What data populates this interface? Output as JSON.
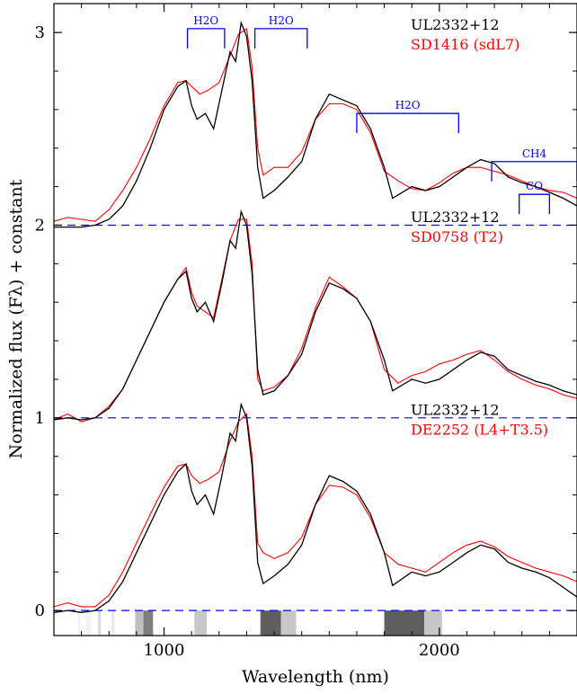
{
  "chart_data": {
    "type": "line",
    "xlabel": "Wavelength (nm)",
    "ylabel": "Normalized flux (Fλ) + constant",
    "xlim": [
      600,
      2500
    ],
    "ylim": [
      -0.13,
      3.15
    ],
    "x_ticks": [
      1000,
      2000
    ],
    "x_tick_labels": [
      "1000",
      "2000"
    ],
    "y_ticks": [
      0,
      1,
      2,
      3
    ],
    "y_tick_labels": [
      "0",
      "1",
      "2",
      "3"
    ],
    "grid": false,
    "offset_lines": [
      0,
      1,
      2
    ],
    "colors": {
      "observed": "#000000",
      "template": "#ff0000",
      "annotation": "#0000ff",
      "offset_line": "#0000ff"
    },
    "panels": [
      {
        "offset": 2,
        "legend": {
          "observed": "UL2332+12",
          "template": "SD1416 (sdL7)"
        },
        "observed": [
          [
            600,
            -0.01
          ],
          [
            650,
            -0.01
          ],
          [
            700,
            -0.01
          ],
          [
            750,
            0.0
          ],
          [
            800,
            0.03
          ],
          [
            850,
            0.1
          ],
          [
            900,
            0.23
          ],
          [
            950,
            0.4
          ],
          [
            1000,
            0.6
          ],
          [
            1050,
            0.72
          ],
          [
            1080,
            0.75
          ],
          [
            1100,
            0.62
          ],
          [
            1120,
            0.55
          ],
          [
            1150,
            0.58
          ],
          [
            1180,
            0.5
          ],
          [
            1210,
            0.7
          ],
          [
            1240,
            0.9
          ],
          [
            1260,
            0.85
          ],
          [
            1280,
            1.05
          ],
          [
            1300,
            0.98
          ],
          [
            1320,
            0.75
          ],
          [
            1340,
            0.3
          ],
          [
            1360,
            0.14
          ],
          [
            1400,
            0.18
          ],
          [
            1450,
            0.25
          ],
          [
            1500,
            0.33
          ],
          [
            1550,
            0.55
          ],
          [
            1600,
            0.68
          ],
          [
            1650,
            0.65
          ],
          [
            1700,
            0.62
          ],
          [
            1750,
            0.5
          ],
          [
            1800,
            0.3
          ],
          [
            1830,
            0.14
          ],
          [
            1900,
            0.2
          ],
          [
            1950,
            0.18
          ],
          [
            2000,
            0.2
          ],
          [
            2050,
            0.25
          ],
          [
            2100,
            0.3
          ],
          [
            2150,
            0.34
          ],
          [
            2200,
            0.32
          ],
          [
            2250,
            0.25
          ],
          [
            2300,
            0.22
          ],
          [
            2350,
            0.2
          ],
          [
            2400,
            0.17
          ],
          [
            2450,
            0.14
          ],
          [
            2500,
            0.1
          ]
        ],
        "template": [
          [
            600,
            0.02
          ],
          [
            650,
            0.04
          ],
          [
            700,
            0.03
          ],
          [
            750,
            0.02
          ],
          [
            800,
            0.08
          ],
          [
            850,
            0.18
          ],
          [
            900,
            0.3
          ],
          [
            950,
            0.45
          ],
          [
            1000,
            0.62
          ],
          [
            1050,
            0.74
          ],
          [
            1080,
            0.75
          ],
          [
            1100,
            0.72
          ],
          [
            1130,
            0.68
          ],
          [
            1160,
            0.7
          ],
          [
            1200,
            0.74
          ],
          [
            1240,
            0.88
          ],
          [
            1270,
            0.99
          ],
          [
            1300,
            1.02
          ],
          [
            1320,
            0.82
          ],
          [
            1340,
            0.4
          ],
          [
            1360,
            0.26
          ],
          [
            1400,
            0.3
          ],
          [
            1450,
            0.3
          ],
          [
            1500,
            0.38
          ],
          [
            1550,
            0.55
          ],
          [
            1600,
            0.63
          ],
          [
            1650,
            0.63
          ],
          [
            1700,
            0.6
          ],
          [
            1750,
            0.48
          ],
          [
            1800,
            0.28
          ],
          [
            1850,
            0.23
          ],
          [
            1900,
            0.19
          ],
          [
            1950,
            0.18
          ],
          [
            2000,
            0.22
          ],
          [
            2050,
            0.27
          ],
          [
            2100,
            0.3
          ],
          [
            2150,
            0.3
          ],
          [
            2200,
            0.28
          ],
          [
            2250,
            0.26
          ],
          [
            2300,
            0.23
          ],
          [
            2350,
            0.2
          ],
          [
            2400,
            0.18
          ],
          [
            2450,
            0.17
          ],
          [
            2500,
            0.14
          ]
        ]
      },
      {
        "offset": 1,
        "legend": {
          "observed": "UL2332+12",
          "template": "SD0758 (T2)"
        },
        "observed": [
          [
            600,
            -0.01
          ],
          [
            650,
            0.0
          ],
          [
            700,
            -0.01
          ],
          [
            750,
            0.0
          ],
          [
            800,
            0.05
          ],
          [
            850,
            0.15
          ],
          [
            900,
            0.3
          ],
          [
            950,
            0.45
          ],
          [
            1000,
            0.6
          ],
          [
            1050,
            0.72
          ],
          [
            1080,
            0.76
          ],
          [
            1100,
            0.62
          ],
          [
            1120,
            0.55
          ],
          [
            1150,
            0.6
          ],
          [
            1180,
            0.5
          ],
          [
            1210,
            0.7
          ],
          [
            1240,
            0.92
          ],
          [
            1260,
            0.88
          ],
          [
            1280,
            1.07
          ],
          [
            1300,
            1.0
          ],
          [
            1320,
            0.75
          ],
          [
            1340,
            0.25
          ],
          [
            1360,
            0.12
          ],
          [
            1400,
            0.14
          ],
          [
            1450,
            0.22
          ],
          [
            1500,
            0.33
          ],
          [
            1550,
            0.55
          ],
          [
            1600,
            0.7
          ],
          [
            1650,
            0.67
          ],
          [
            1700,
            0.62
          ],
          [
            1750,
            0.5
          ],
          [
            1800,
            0.3
          ],
          [
            1830,
            0.14
          ],
          [
            1900,
            0.2
          ],
          [
            1950,
            0.18
          ],
          [
            2000,
            0.2
          ],
          [
            2050,
            0.25
          ],
          [
            2100,
            0.3
          ],
          [
            2150,
            0.34
          ],
          [
            2200,
            0.32
          ],
          [
            2250,
            0.25
          ],
          [
            2300,
            0.22
          ],
          [
            2350,
            0.19
          ],
          [
            2400,
            0.17
          ],
          [
            2450,
            0.14
          ],
          [
            2500,
            0.12
          ]
        ],
        "template": [
          [
            600,
            -0.01
          ],
          [
            650,
            0.02
          ],
          [
            700,
            -0.02
          ],
          [
            750,
            0.0
          ],
          [
            800,
            0.06
          ],
          [
            850,
            0.15
          ],
          [
            900,
            0.3
          ],
          [
            950,
            0.45
          ],
          [
            1000,
            0.6
          ],
          [
            1050,
            0.72
          ],
          [
            1080,
            0.78
          ],
          [
            1100,
            0.65
          ],
          [
            1120,
            0.58
          ],
          [
            1150,
            0.55
          ],
          [
            1180,
            0.52
          ],
          [
            1210,
            0.72
          ],
          [
            1240,
            0.92
          ],
          [
            1270,
            1.03
          ],
          [
            1300,
            1.03
          ],
          [
            1320,
            0.8
          ],
          [
            1340,
            0.2
          ],
          [
            1360,
            0.14
          ],
          [
            1400,
            0.16
          ],
          [
            1450,
            0.22
          ],
          [
            1500,
            0.36
          ],
          [
            1550,
            0.57
          ],
          [
            1600,
            0.73
          ],
          [
            1650,
            0.68
          ],
          [
            1700,
            0.62
          ],
          [
            1750,
            0.5
          ],
          [
            1800,
            0.25
          ],
          [
            1850,
            0.18
          ],
          [
            1900,
            0.22
          ],
          [
            1950,
            0.24
          ],
          [
            2000,
            0.28
          ],
          [
            2050,
            0.3
          ],
          [
            2100,
            0.33
          ],
          [
            2150,
            0.35
          ],
          [
            2200,
            0.3
          ],
          [
            2250,
            0.24
          ],
          [
            2300,
            0.2
          ],
          [
            2350,
            0.17
          ],
          [
            2400,
            0.15
          ],
          [
            2450,
            0.12
          ],
          [
            2500,
            0.1
          ]
        ]
      },
      {
        "offset": 0,
        "legend": {
          "observed": "UL2332+12",
          "template": "DE2252 (L4+T3.5)"
        },
        "observed": [
          [
            600,
            -0.01
          ],
          [
            650,
            0.0
          ],
          [
            700,
            -0.01
          ],
          [
            750,
            0.0
          ],
          [
            800,
            0.05
          ],
          [
            850,
            0.15
          ],
          [
            900,
            0.3
          ],
          [
            950,
            0.45
          ],
          [
            1000,
            0.6
          ],
          [
            1050,
            0.72
          ],
          [
            1080,
            0.76
          ],
          [
            1100,
            0.62
          ],
          [
            1120,
            0.55
          ],
          [
            1150,
            0.6
          ],
          [
            1180,
            0.5
          ],
          [
            1210,
            0.7
          ],
          [
            1240,
            0.92
          ],
          [
            1260,
            0.88
          ],
          [
            1280,
            1.07
          ],
          [
            1300,
            1.0
          ],
          [
            1320,
            0.75
          ],
          [
            1340,
            0.25
          ],
          [
            1360,
            0.14
          ],
          [
            1400,
            0.18
          ],
          [
            1450,
            0.24
          ],
          [
            1500,
            0.34
          ],
          [
            1550,
            0.55
          ],
          [
            1600,
            0.7
          ],
          [
            1650,
            0.67
          ],
          [
            1700,
            0.62
          ],
          [
            1750,
            0.5
          ],
          [
            1800,
            0.3
          ],
          [
            1830,
            0.13
          ],
          [
            1900,
            0.2
          ],
          [
            1950,
            0.18
          ],
          [
            2000,
            0.2
          ],
          [
            2050,
            0.25
          ],
          [
            2100,
            0.3
          ],
          [
            2150,
            0.34
          ],
          [
            2200,
            0.32
          ],
          [
            2250,
            0.25
          ],
          [
            2300,
            0.22
          ],
          [
            2350,
            0.2
          ],
          [
            2400,
            0.17
          ],
          [
            2450,
            0.12
          ],
          [
            2500,
            0.07
          ]
        ],
        "template": [
          [
            600,
            0.02
          ],
          [
            650,
            0.04
          ],
          [
            700,
            0.02
          ],
          [
            750,
            0.02
          ],
          [
            800,
            0.08
          ],
          [
            850,
            0.2
          ],
          [
            900,
            0.35
          ],
          [
            950,
            0.5
          ],
          [
            1000,
            0.64
          ],
          [
            1050,
            0.75
          ],
          [
            1080,
            0.76
          ],
          [
            1100,
            0.7
          ],
          [
            1130,
            0.66
          ],
          [
            1160,
            0.68
          ],
          [
            1200,
            0.72
          ],
          [
            1240,
            0.88
          ],
          [
            1270,
            0.98
          ],
          [
            1300,
            1.02
          ],
          [
            1320,
            0.8
          ],
          [
            1340,
            0.35
          ],
          [
            1360,
            0.3
          ],
          [
            1400,
            0.27
          ],
          [
            1450,
            0.3
          ],
          [
            1500,
            0.38
          ],
          [
            1550,
            0.55
          ],
          [
            1600,
            0.65
          ],
          [
            1650,
            0.64
          ],
          [
            1700,
            0.6
          ],
          [
            1750,
            0.48
          ],
          [
            1800,
            0.3
          ],
          [
            1850,
            0.24
          ],
          [
            1900,
            0.22
          ],
          [
            1950,
            0.2
          ],
          [
            2000,
            0.25
          ],
          [
            2050,
            0.3
          ],
          [
            2100,
            0.34
          ],
          [
            2150,
            0.36
          ],
          [
            2200,
            0.33
          ],
          [
            2250,
            0.28
          ],
          [
            2300,
            0.25
          ],
          [
            2350,
            0.22
          ],
          [
            2400,
            0.2
          ],
          [
            2450,
            0.18
          ],
          [
            2500,
            0.15
          ]
        ]
      }
    ],
    "band_annotations": [
      {
        "label": "H2O",
        "x_start": 1085,
        "x_end": 1220,
        "y": 3.02
      },
      {
        "label": "H2O",
        "x_start": 1330,
        "x_end": 1520,
        "y": 3.02
      },
      {
        "label": "H2O",
        "x_start": 1700,
        "x_end": 2070,
        "y": 2.58
      },
      {
        "label": "CH4",
        "x_start": 2190,
        "x_end": 2500,
        "y": 2.33
      },
      {
        "label": "CO",
        "x_start": 2290,
        "x_end": 2400,
        "y": 2.16
      }
    ],
    "telluric_regions": [
      {
        "x_start": 688,
        "x_end": 695,
        "shade": "#f2f2f2"
      },
      {
        "x_start": 715,
        "x_end": 735,
        "shade": "#f2f2f2"
      },
      {
        "x_start": 760,
        "x_end": 770,
        "shade": "#d9d9d9"
      },
      {
        "x_start": 810,
        "x_end": 820,
        "shade": "#e8e8e8"
      },
      {
        "x_start": 895,
        "x_end": 925,
        "shade": "#bfbfbf"
      },
      {
        "x_start": 925,
        "x_end": 960,
        "shade": "#7f7f7f"
      },
      {
        "x_start": 1110,
        "x_end": 1155,
        "shade": "#c8c8c8"
      },
      {
        "x_start": 1350,
        "x_end": 1425,
        "shade": "#5f5f5f"
      },
      {
        "x_start": 1425,
        "x_end": 1480,
        "shade": "#c8c8c8"
      },
      {
        "x_start": 1800,
        "x_end": 1945,
        "shade": "#5f5f5f"
      },
      {
        "x_start": 1945,
        "x_end": 2010,
        "shade": "#c8c8c8"
      }
    ]
  }
}
